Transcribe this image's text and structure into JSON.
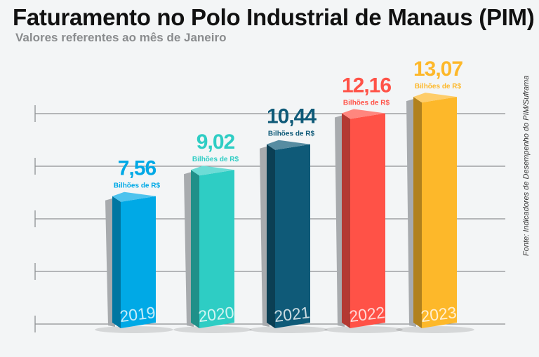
{
  "header": {
    "title": "Faturamento no Polo Industrial de Manaus (PIM)",
    "subtitle": "Valores referentes ao mês de Janeiro"
  },
  "source": "Fonte: Indicadores de Desempenho do PIM/Suframa",
  "chart_data": {
    "type": "bar",
    "title": "Faturamento no Polo Industrial de Manaus (PIM)",
    "subtitle": "Valores referentes ao mês de Janeiro",
    "xlabel": "",
    "ylabel": "",
    "categories": [
      "2019",
      "2020",
      "2021",
      "2022",
      "2023"
    ],
    "values": [
      7.56,
      9.02,
      10.44,
      12.16,
      13.07
    ],
    "value_labels": [
      "7,56",
      "9,02",
      "10,44",
      "12,16",
      "13,07"
    ],
    "unit_label": "Bilhões de R$",
    "colors": [
      "#00a9e6",
      "#2ecdc4",
      "#0f5a78",
      "#ff5247",
      "#fdb82a"
    ],
    "grid": true,
    "gridlines": 5,
    "legend": "none"
  }
}
